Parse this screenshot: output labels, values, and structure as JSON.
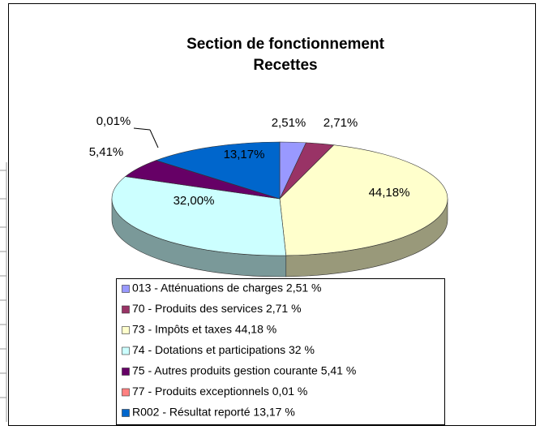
{
  "chart_data": {
    "type": "pie3d",
    "title": [
      "Section de fonctionnement",
      "Recettes"
    ],
    "categories": [
      "013 - Atténuations de charges 2,51 %",
      "70 - Produits des services 2,71 %",
      "73 - Impôts et taxes 44,18 %",
      "74 - Dotations et participations 32 %",
      "75 - Autres produits gestion courante 5,41 %",
      "77 - Produits exceptionnels 0,01 %",
      "R002 - Résultat reporté 13,17 %"
    ],
    "values": [
      2.51,
      2.71,
      44.18,
      32.0,
      5.41,
      0.01,
      13.17
    ],
    "value_labels": [
      "2,51%",
      "2,71%",
      "44,18%",
      "32,00%",
      "5,41%",
      "0,01%",
      "13,17%"
    ],
    "colors": [
      "#9999ff",
      "#993366",
      "#ffffcc",
      "#ccffff",
      "#660066",
      "#ff8080",
      "#0066cc"
    ],
    "legend": "bottom"
  }
}
